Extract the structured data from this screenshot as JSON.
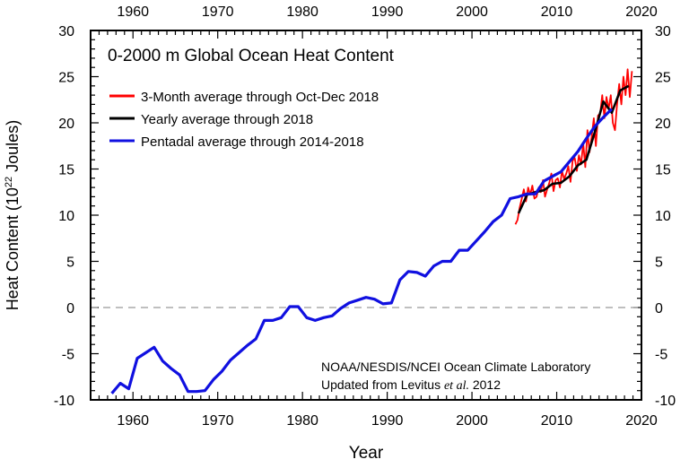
{
  "chart_data": {
    "type": "line",
    "title": "0-2000 m Global Ocean Heat Content",
    "xlabel": "Year",
    "ylabel": "Heat Content (10",
    "ylabel_sup": "22",
    "ylabel_unit": " Joules)",
    "xlim": [
      1955,
      2020
    ],
    "ylim": [
      -10,
      30
    ],
    "xticks": [
      1960,
      1970,
      1980,
      1990,
      2000,
      2010,
      2020
    ],
    "yticks": [
      -10,
      -5,
      0,
      5,
      10,
      15,
      20,
      25,
      30
    ],
    "grid": false,
    "zero_line": "dashed gray",
    "legend_placement": "top-left",
    "annotation": [
      "NOAA/NESDIS/NCEI Ocean Climate Laboratory",
      "Updated from Levitus ",
      "et al.",
      " 2012"
    ],
    "series": [
      {
        "name": "3-Month average through Oct-Dec 2018",
        "color": "#ff0000",
        "x_start": 2005.125,
        "x_step": 0.25,
        "values": [
          9.0,
          9.5,
          10.8,
          11.8,
          12.8,
          11.5,
          13.0,
          12.2,
          13.2,
          11.8,
          12.0,
          13.0,
          12.5,
          13.8,
          12.0,
          12.8,
          13.5,
          14.5,
          12.6,
          13.8,
          14.0,
          13.0,
          14.8,
          13.9,
          14.5,
          15.3,
          13.6,
          15.9,
          16.2,
          14.8,
          16.5,
          15.5,
          17.8,
          15.2,
          19.2,
          16.8,
          18.5,
          20.5,
          17.5,
          20.8,
          21.0,
          23.0,
          20.5,
          22.8,
          21.5,
          23.0,
          20.0,
          19.2,
          22.0,
          24.2,
          22.0,
          25.0,
          23.0,
          25.8,
          22.8,
          25.6
        ]
      },
      {
        "name": "Yearly average through 2018",
        "color": "#000000",
        "x_start": 2005.5,
        "x_step": 1,
        "values": [
          10.2,
          12.2,
          12.5,
          12.7,
          13.4,
          13.5,
          14.2,
          15.4,
          16.0,
          19.0,
          22.3,
          21.1,
          23.5,
          24.0
        ]
      },
      {
        "name": "Pentadal average through 2014-2018",
        "color": "#1010e0",
        "x_start": 1957.5,
        "x_step": 1,
        "values": [
          -9.3,
          -8.2,
          -8.8,
          -5.5,
          -4.9,
          -4.3,
          -5.8,
          -6.6,
          -7.3,
          -9.1,
          -9.1,
          -9.0,
          -7.8,
          -6.9,
          -5.7,
          -4.9,
          -4.1,
          -3.4,
          -1.4,
          -1.4,
          -1.1,
          0.1,
          0.1,
          -1.1,
          -1.4,
          -1.1,
          -0.9,
          -0.1,
          0.5,
          0.8,
          1.1,
          0.9,
          0.4,
          0.5,
          3.0,
          3.9,
          3.8,
          3.4,
          4.5,
          5.0,
          5.0,
          6.2,
          6.2,
          7.2,
          8.2,
          9.3,
          10.0,
          11.8,
          12.0,
          12.3,
          12.3,
          13.7,
          14.2,
          14.7,
          15.8,
          16.9,
          18.3,
          19.6,
          20.6,
          21.5
        ]
      }
    ]
  }
}
